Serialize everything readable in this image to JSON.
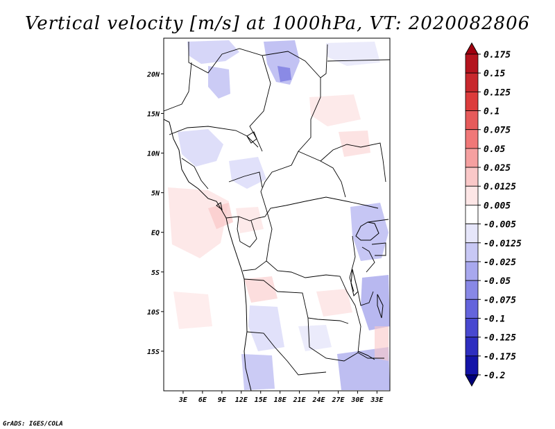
{
  "title": "Vertical velocity [m/s] at 1000hPa, VT: 2020082806",
  "credit": "GrADS: IGES/COLA",
  "lat_ticks": [
    "20N",
    "15N",
    "10N",
    "5N",
    "EQ",
    "5S",
    "10S",
    "15S"
  ],
  "lon_ticks": [
    "3E",
    "6E",
    "9E",
    "12E",
    "15E",
    "18E",
    "21E",
    "24E",
    "27E",
    "30E",
    "33E"
  ],
  "lat_values": [
    20,
    15,
    10,
    5,
    0,
    -5,
    -10,
    -15
  ],
  "lon_values": [
    3,
    6,
    9,
    12,
    15,
    18,
    21,
    24,
    27,
    30,
    33
  ],
  "map_extent": {
    "lon_min": 0,
    "lon_max": 35,
    "lat_min": -20,
    "lat_max": 24.5
  },
  "colorbar": {
    "labels": [
      "0.175",
      "0.15",
      "0.125",
      "0.1",
      "0.075",
      "0.05",
      "0.025",
      "0.0125",
      "0.005",
      "-0.005",
      "-0.0125",
      "-0.025",
      "-0.05",
      "-0.075",
      "-0.1",
      "-0.125",
      "-0.175",
      "-0.2"
    ],
    "colors": [
      "#a0000f",
      "#b4141e",
      "#c8282d",
      "#dc3c3c",
      "#e65a5a",
      "#f07878",
      "#f5a0a0",
      "#fac8c8",
      "#fde6e6",
      "#ffffff",
      "#e6e6fa",
      "#c8c8f5",
      "#a8a8ee",
      "#8888e6",
      "#6464dc",
      "#4848d0",
      "#2e2ec0",
      "#1414a8",
      "#00007a"
    ]
  }
}
